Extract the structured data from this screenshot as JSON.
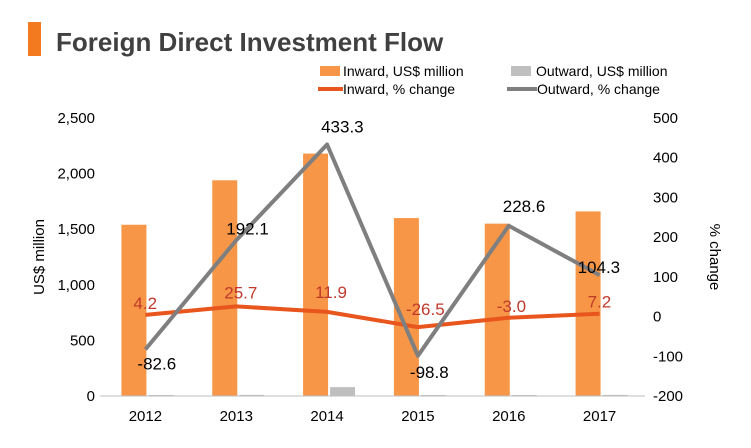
{
  "chart_data": {
    "type": "bar",
    "title": "Foreign Direct Investment Flow",
    "categories": [
      "2012",
      "2013",
      "2014",
      "2015",
      "2016",
      "2017"
    ],
    "ylabel_left": "US$ million",
    "ylabel_right": "% change",
    "ylim_left": [
      0,
      2500
    ],
    "ylim_right": [
      -200,
      500
    ],
    "yticks_left": [
      "0",
      "500",
      "1,000",
      "1,500",
      "2,000",
      "2,500"
    ],
    "yticks_right": [
      "-200",
      "-100",
      "0",
      "100",
      "200",
      "300",
      "400",
      "500"
    ],
    "bar_series": [
      {
        "name": "Inward, US$ million",
        "values": [
          1540,
          1940,
          2180,
          1600,
          1550,
          1660
        ],
        "color": "#f79646"
      },
      {
        "name": "Outward, US$ million",
        "values": [
          8,
          10,
          80,
          5,
          8,
          10
        ],
        "color": "#bfbfbf"
      }
    ],
    "line_series": [
      {
        "name": "Inward, % change",
        "values": [
          4.2,
          25.7,
          11.9,
          -26.5,
          -3.0,
          7.2
        ],
        "labels": [
          "4.2",
          "25.7",
          "11.9",
          "-26.5",
          "-3.0",
          "7.2"
        ],
        "color": "#e8561e"
      },
      {
        "name": "Outward, % change",
        "values": [
          -82.6,
          192.1,
          433.3,
          -98.8,
          228.6,
          104.3
        ],
        "labels": [
          "-82.6",
          "192.1",
          "433.3",
          "-98.8",
          "228.6",
          "104.3"
        ],
        "color": "#7f7f7f"
      }
    ],
    "legend_position": "top-right",
    "grid": false,
    "title_marker_color": "#f47a20"
  }
}
